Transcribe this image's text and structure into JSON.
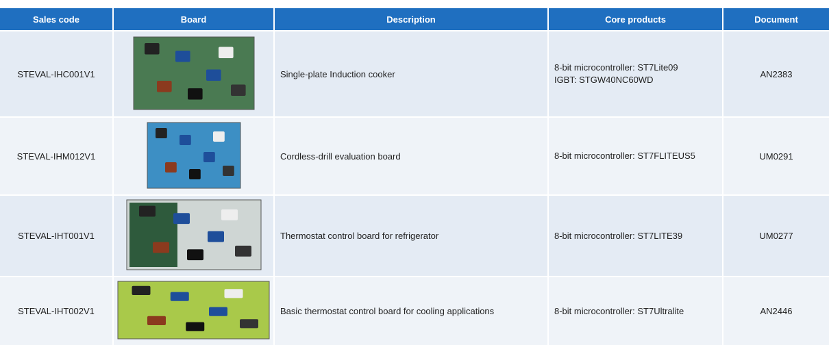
{
  "header": {
    "columns": [
      "Sales code",
      "Board",
      "Description",
      "Core products",
      "Document"
    ]
  },
  "rows": [
    {
      "sales_code": "STEVAL-IHC001V1",
      "description": "Single-plate Induction cooker",
      "core_products": [
        "8-bit microcontroller: ST7Lite09",
        "IGBT: STGW40NC60WD"
      ],
      "document": "AN2383"
    },
    {
      "sales_code": "STEVAL-IHM012V1",
      "description": "Cordless-drill evaluation board",
      "core_products": [
        "8-bit microcontroller: ST7FLITEUS5"
      ],
      "document": "UM0291"
    },
    {
      "sales_code": "STEVAL-IHT001V1",
      "description": "Thermostat control board for refrigerator",
      "core_products": [
        "8-bit microcontroller: ST7LITE39"
      ],
      "document": "UM0277"
    },
    {
      "sales_code": "STEVAL-IHT002V1",
      "description": "Basic thermostat control board for cooling applications",
      "core_products": [
        "8-bit microcontroller: ST7Ultralite"
      ],
      "document": "AN2446"
    }
  ]
}
